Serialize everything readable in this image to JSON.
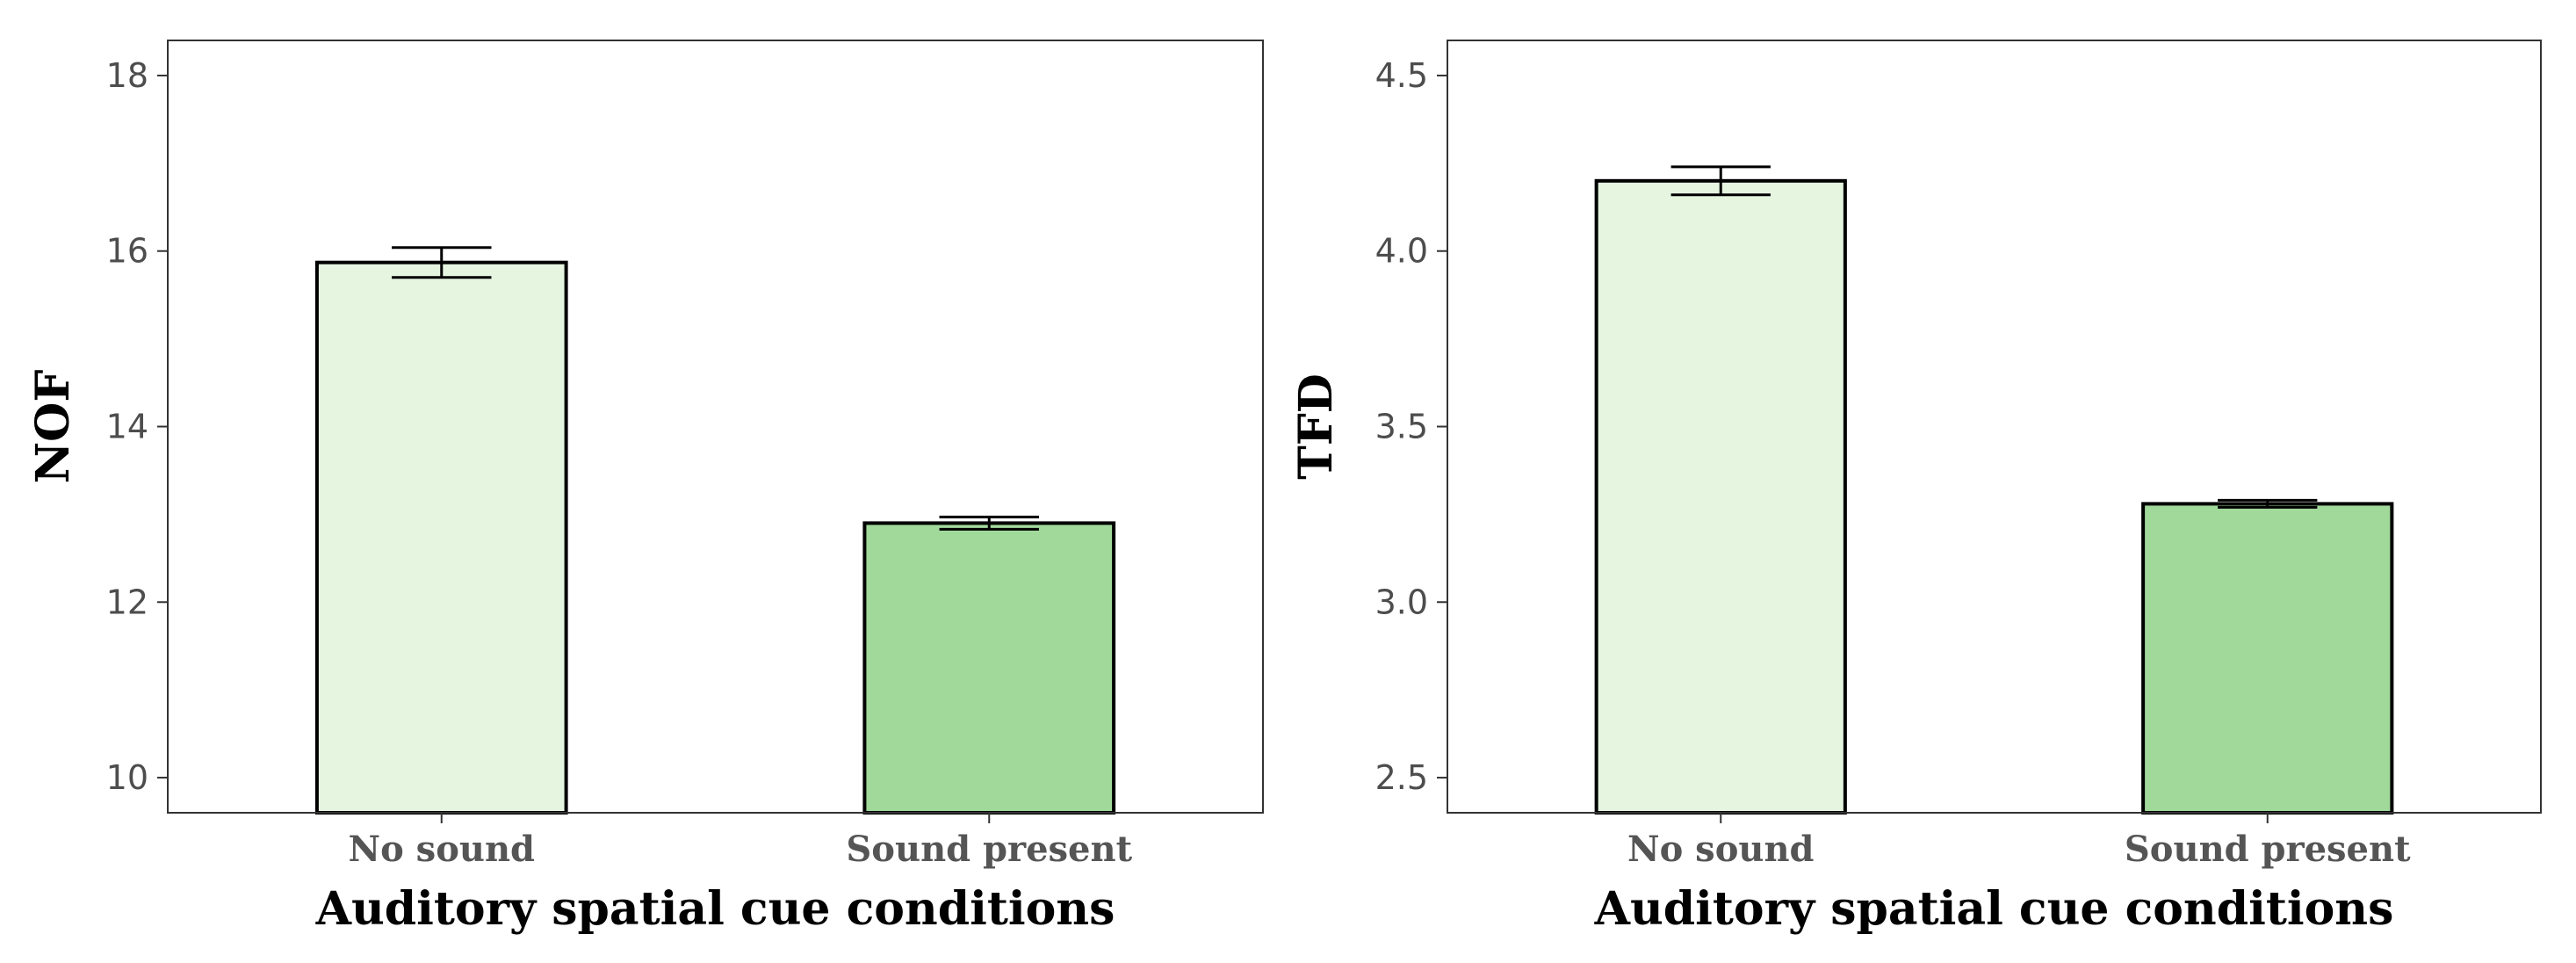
{
  "chart_data": [
    {
      "type": "bar",
      "categories": [
        "No sound",
        "Sound present"
      ],
      "values": [
        15.87,
        12.9
      ],
      "error": [
        0.17,
        0.07
      ],
      "colors": [
        "#e5f5e0",
        "#a1d99b"
      ],
      "xlabel": "Auditory spatial cue conditions",
      "ylabel": "NOF",
      "ylim": [
        9.6,
        18.4
      ],
      "yticks": [
        10,
        12,
        14,
        16,
        18
      ],
      "ytick_labels": [
        "10",
        "12",
        "14",
        "16",
        "18"
      ],
      "grid": false
    },
    {
      "type": "bar",
      "categories": [
        "No sound",
        "Sound present"
      ],
      "values": [
        4.2,
        3.28
      ],
      "error": [
        0.04,
        0.01
      ],
      "colors": [
        "#e5f5e0",
        "#a1d99b"
      ],
      "xlabel": "Auditory spatial cue conditions",
      "ylabel": "TFD",
      "ylim": [
        2.4,
        4.6
      ],
      "yticks": [
        2.5,
        3.0,
        3.5,
        4.0,
        4.5
      ],
      "ytick_labels": [
        "2.5",
        "3.0",
        "3.5",
        "4.0",
        "4.5"
      ],
      "grid": false
    }
  ]
}
